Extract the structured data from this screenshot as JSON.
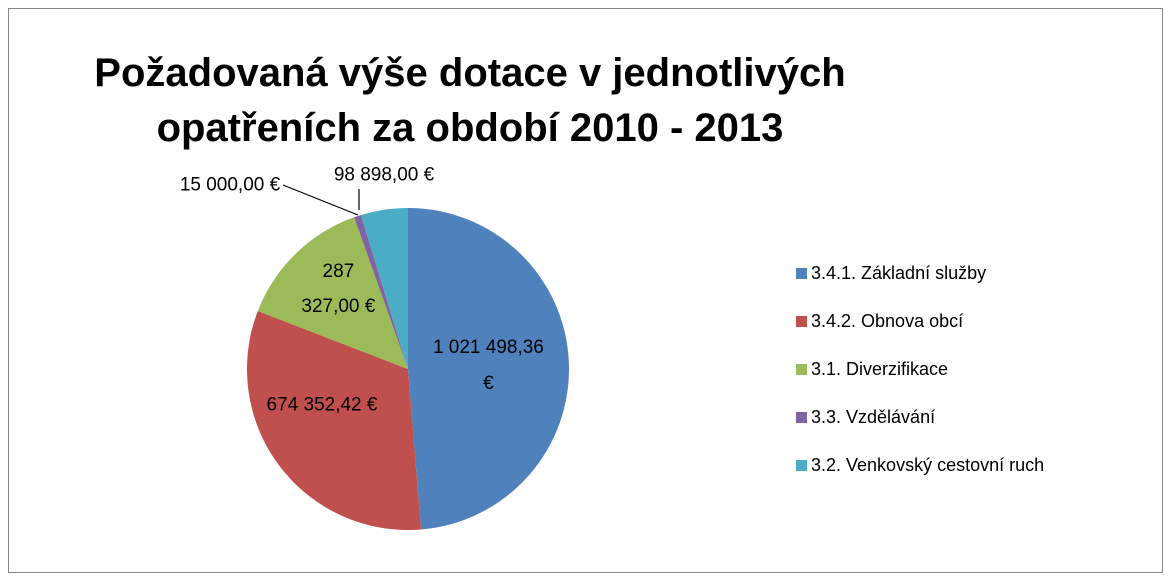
{
  "chart_data": {
    "type": "pie",
    "title": "Požadovaná výše dotace v jednotlivých opatřeních za období 2010 - 2013",
    "categories": [
      "3.4.1. Základní služby",
      "3.4.2. Obnova obcí",
      "3.1. Diverzifikace",
      "3.3. Vzdělávání",
      "3.2. Venkovský cestovní ruch"
    ],
    "values": [
      1021498.36,
      674352.42,
      287327.0,
      15000.0,
      98898.0
    ],
    "value_labels": [
      "1 021 498,36 €",
      "674 352,42 €",
      "287 327,00 €",
      "15 000,00 €",
      "98 898,00 €"
    ],
    "colors": [
      "#4f81bd",
      "#c0504d",
      "#9bbb59",
      "#8064a2",
      "#4bacc6"
    ],
    "legend": "right"
  }
}
